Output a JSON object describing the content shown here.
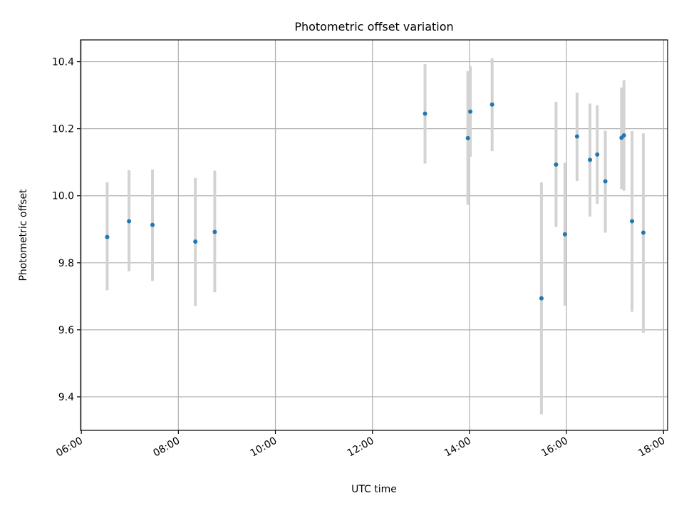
{
  "chart_data": {
    "type": "scatter",
    "title": "Photometric offset variation",
    "xlabel": "UTC time",
    "ylabel": "Photometric offset",
    "x_ticks": [
      "06:00",
      "08:00",
      "10:00",
      "12:00",
      "14:00",
      "16:00",
      "18:00"
    ],
    "y_ticks": [
      "9.4",
      "9.6",
      "9.8",
      "10.0",
      "10.2",
      "10.4"
    ],
    "xlim": [
      "05:59",
      "18:05"
    ],
    "ylim": [
      9.3,
      10.465
    ],
    "grid": true,
    "marker_color": "#1f77b4",
    "errorbar_color": "#d3d3d3",
    "series": [
      {
        "x": [
          "06:32",
          "06:59",
          "07:28",
          "08:21",
          "08:45",
          "13:05",
          "13:58",
          "14:01",
          "14:28",
          "15:29",
          "15:47",
          "15:58",
          "16:13",
          "16:29",
          "16:38",
          "16:48",
          "17:08",
          "17:11",
          "17:21",
          "17:35"
        ],
        "y": [
          9.877,
          9.924,
          9.913,
          9.863,
          9.892,
          10.245,
          10.172,
          10.251,
          10.272,
          9.694,
          10.093,
          9.885,
          10.177,
          10.107,
          10.123,
          10.043,
          10.173,
          10.18,
          9.924,
          9.89
        ],
        "err_low": [
          9.718,
          9.775,
          9.746,
          9.671,
          9.712,
          10.096,
          9.973,
          10.116,
          10.133,
          9.348,
          9.907,
          9.672,
          10.044,
          9.938,
          9.976,
          9.89,
          10.02,
          10.015,
          9.654,
          9.591
        ],
        "err_high": [
          10.04,
          10.076,
          10.078,
          10.053,
          10.075,
          10.393,
          10.372,
          10.386,
          10.41,
          10.04,
          10.28,
          10.098,
          10.308,
          10.275,
          10.27,
          10.194,
          10.323,
          10.345,
          10.193,
          10.186
        ]
      }
    ]
  }
}
